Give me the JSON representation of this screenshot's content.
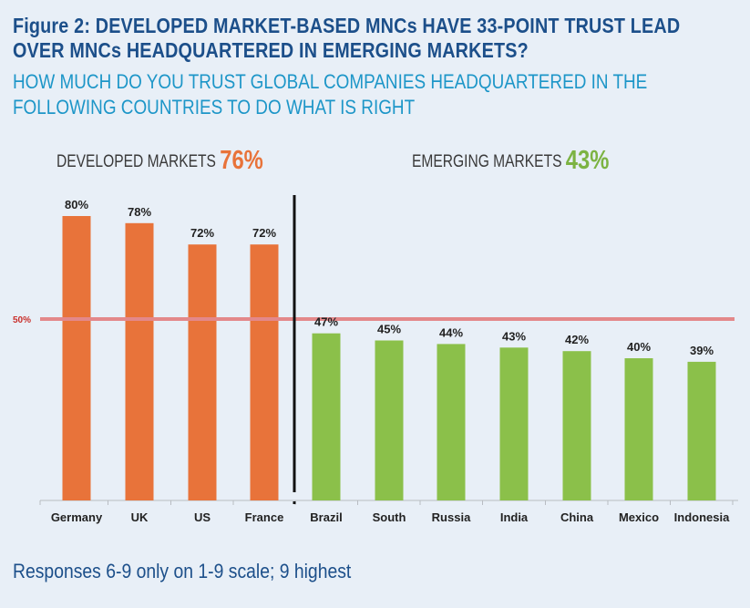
{
  "title": {
    "line1": "Figure 2: DEVELOPED MARKET-BASED MNCs HAVE 33-POINT TRUST LEAD",
    "line2": "OVER MNCs HEADQUARTERED IN EMERGING MARKETS?"
  },
  "subtitle": {
    "line1": "HOW MUCH DO YOU TRUST GLOBAL COMPANIES HEADQUARTERED IN THE",
    "line2": "FOLLOWING COUNTRIES TO DO WHAT IS RIGHT"
  },
  "groups": {
    "developed": {
      "label": "DEVELOPED MARKETS",
      "value": "76%"
    },
    "emerging": {
      "label": "EMERGING MARKETS",
      "value": "43%"
    }
  },
  "footnote": "Responses 6-9 only on 1-9 scale; 9 highest",
  "colors": {
    "developed": "#e8733a",
    "emerging": "#8bc04a",
    "reference_line": "#e3888a",
    "title": "#1c4f8a",
    "subtitle": "#1d96c8",
    "background": "#e8eff7"
  },
  "chart_data": {
    "type": "bar",
    "categories": [
      "Germany",
      "UK",
      "US",
      "France",
      "Brazil",
      "South",
      "Russia",
      "India",
      "China",
      "Mexico",
      "Indonesia"
    ],
    "values": [
      80,
      78,
      72,
      72,
      47,
      45,
      44,
      43,
      42,
      40,
      39
    ],
    "data_labels": [
      "80%",
      "78%",
      "72%",
      "72%",
      "47%",
      "45%",
      "44%",
      "43%",
      "42%",
      "40%",
      "39%"
    ],
    "groups": [
      "developed",
      "developed",
      "developed",
      "developed",
      "emerging",
      "emerging",
      "emerging",
      "emerging",
      "emerging",
      "emerging",
      "emerging"
    ],
    "reference_line": {
      "value": 50,
      "label": "50%"
    },
    "ylim": [
      0,
      80
    ],
    "grid": false,
    "title": "Figure 2: DEVELOPED MARKET-BASED MNCs HAVE 33-POINT TRUST LEAD OVER MNCs HEADQUARTERED IN EMERGING MARKETS?",
    "xlabel": "",
    "ylabel": ""
  }
}
